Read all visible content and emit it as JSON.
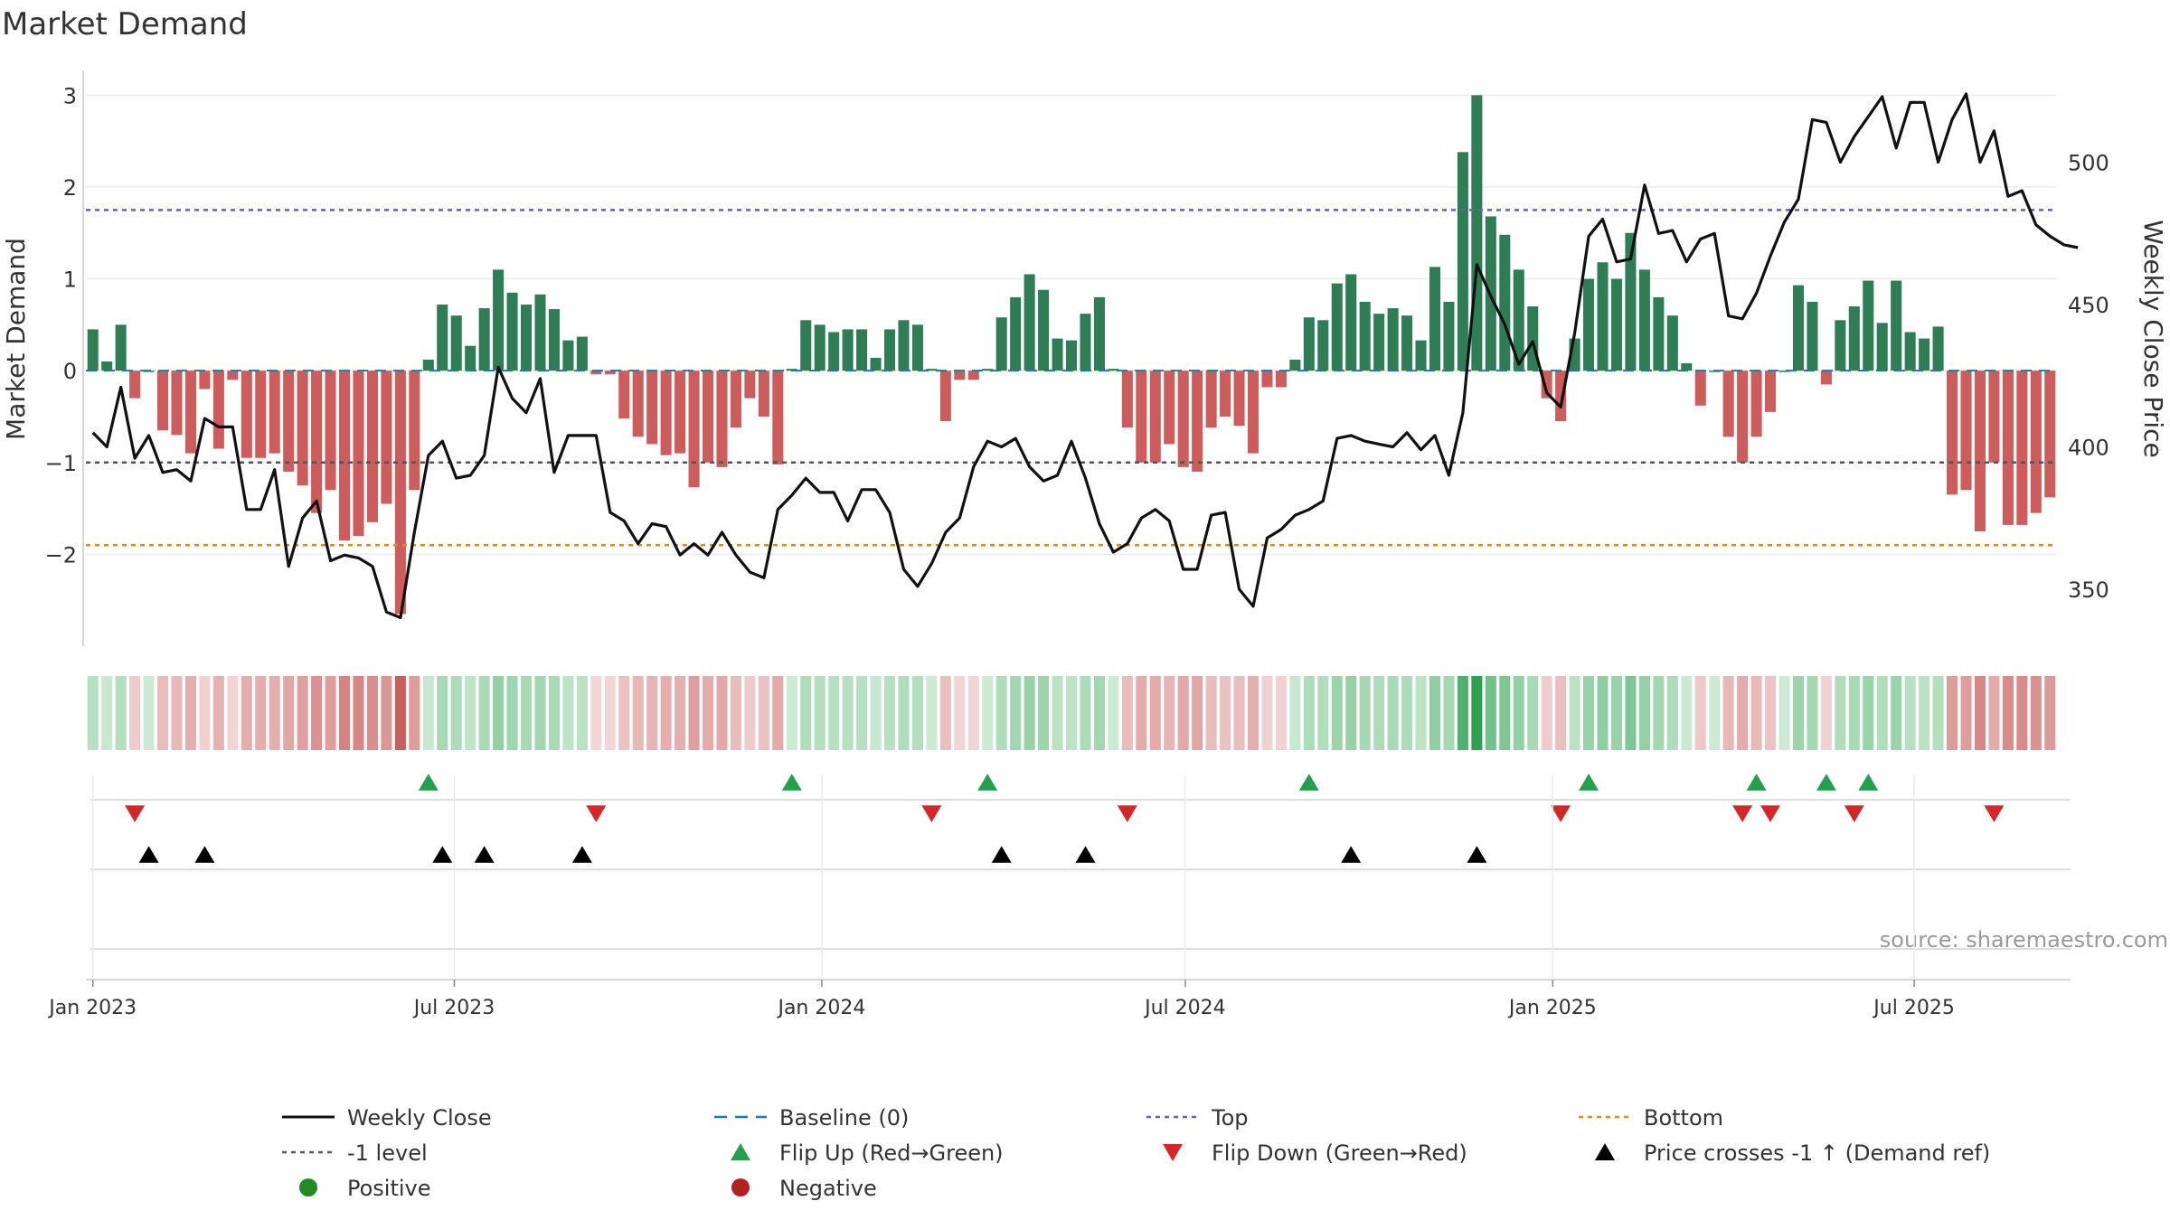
{
  "colors": {
    "green": "#2e7d55",
    "red": "#cd5c5c",
    "top": "#6a5acd",
    "bottom": "#e08a1e",
    "minus1": "#555555",
    "baseline": "#1f77b4",
    "price": "#111111",
    "flip_up": "#22a04b",
    "flip_down": "#d62728",
    "cross": "#000000",
    "pos_dot": "#228b22",
    "neg_dot": "#b22222",
    "grid": "#ececec",
    "axis": "#cccccc",
    "text": "#333333",
    "source": "#999999"
  },
  "chart_data": {
    "type": "bar+line",
    "title": "Market Demand",
    "ylabel_left": "Market Demand",
    "ylabel_right": "Weekly Close Price",
    "source": "source: sharemaestro.com",
    "date_start": "2023-01-01",
    "date_end": "2025-09-08",
    "dates_step_days": 7,
    "ylim_left": [
      -3.0,
      3.2
    ],
    "ylim_right": [
      330,
      530
    ],
    "yticks_left": [
      3,
      2,
      1,
      0,
      -1,
      -2
    ],
    "ytick_labels_left": [
      "3",
      "2",
      "1",
      "0",
      "−1",
      "−2"
    ],
    "yticks_right": [
      500,
      450,
      400,
      350
    ],
    "ytick_labels_right": [
      "500",
      "450",
      "400",
      "350"
    ],
    "xtick_dates": [
      "2023-01-01",
      "2023-07-01",
      "2024-01-01",
      "2024-07-01",
      "2025-01-01",
      "2025-07-01"
    ],
    "xtick_labels": [
      "Jan 2023",
      "Jul 2023",
      "Jan 2024",
      "Jul 2024",
      "Jan 2025",
      "Jul 2025"
    ],
    "levels": {
      "top": 1.75,
      "minus_one": -1.0,
      "bottom": -1.9,
      "baseline": 0
    },
    "demand": [
      0.45,
      0.1,
      0.5,
      -0.3,
      0.0,
      -0.65,
      -0.7,
      -0.9,
      -0.2,
      -0.85,
      -0.1,
      -0.95,
      -0.95,
      -0.9,
      -1.1,
      -1.25,
      -1.55,
      -1.3,
      -1.85,
      -1.8,
      -1.65,
      -1.45,
      -2.65,
      -1.3,
      0.12,
      0.72,
      0.6,
      0.27,
      0.68,
      1.1,
      0.85,
      0.72,
      0.83,
      0.67,
      0.33,
      0.37,
      -0.04,
      -0.04,
      -0.52,
      -0.72,
      -0.8,
      -0.92,
      -0.9,
      -1.27,
      -1.0,
      -1.05,
      -0.62,
      -0.3,
      -0.5,
      -1.02,
      0.02,
      0.55,
      0.5,
      0.42,
      0.45,
      0.45,
      0.14,
      0.45,
      0.55,
      0.5,
      0.02,
      -0.55,
      -0.1,
      -0.1,
      0.02,
      0.58,
      0.8,
      1.05,
      0.88,
      0.35,
      0.33,
      0.62,
      0.8,
      0.02,
      -0.62,
      -1.0,
      -1.0,
      -0.8,
      -1.05,
      -1.1,
      -0.62,
      -0.5,
      -0.6,
      -0.9,
      -0.18,
      -0.18,
      0.12,
      0.58,
      0.55,
      0.95,
      1.05,
      0.75,
      0.62,
      0.68,
      0.6,
      0.33,
      1.13,
      0.75,
      2.38,
      3.0,
      1.68,
      1.48,
      1.1,
      0.7,
      -0.3,
      -0.55,
      0.35,
      1.0,
      1.18,
      1.0,
      1.5,
      1.1,
      0.8,
      0.6,
      0.08,
      -0.38,
      0.0,
      -0.72,
      -1.0,
      -0.72,
      -0.45,
      0.0,
      0.93,
      0.75,
      -0.15,
      0.55,
      0.7,
      0.98,
      0.52,
      0.98,
      0.42,
      0.35,
      0.48,
      -1.35,
      -1.3,
      -1.75,
      -1.0,
      -1.68,
      -1.68,
      -1.55,
      -1.38
    ],
    "close": [
      405,
      400,
      421,
      396,
      404,
      391,
      392,
      388,
      410,
      407,
      407,
      378,
      378,
      392,
      358,
      375,
      381,
      360,
      362,
      361,
      358,
      342,
      340,
      370,
      397,
      402,
      389,
      390,
      397,
      428,
      417,
      412,
      424,
      391,
      404,
      404,
      404,
      377,
      374,
      366,
      373,
      372,
      362,
      366,
      362,
      370,
      362,
      356,
      354,
      378,
      383,
      389,
      384,
      384,
      374,
      385,
      385,
      377,
      357,
      351,
      359,
      370,
      375,
      393,
      402,
      400,
      403,
      393,
      388,
      390,
      402,
      389,
      373,
      363,
      366,
      375,
      378,
      374,
      357,
      357,
      376,
      377,
      350,
      344,
      368,
      371,
      376,
      378,
      381,
      403,
      404,
      402,
      401,
      400,
      405,
      399,
      404,
      390,
      412,
      464,
      453,
      443,
      429,
      437,
      419,
      414,
      440,
      474,
      480,
      465,
      466,
      492,
      475,
      476,
      465,
      473,
      475,
      446,
      445,
      454,
      467,
      479,
      487,
      515,
      514,
      500,
      509,
      516,
      523,
      505,
      521,
      521,
      500,
      515,
      524,
      500,
      511,
      488,
      490,
      478,
      474,
      471,
      470
    ],
    "flip_up_idx": [
      24,
      50,
      64,
      87,
      107,
      119,
      124,
      127
    ],
    "flip_down_idx": [
      3,
      36,
      60,
      74,
      105,
      118,
      120,
      126,
      136
    ],
    "cross_idx": [
      4,
      8,
      25,
      28,
      35,
      65,
      71,
      90,
      99
    ],
    "legend": [
      {
        "label": "Weekly Close",
        "kind": "line",
        "color": "price"
      },
      {
        "label": "Baseline (0)",
        "kind": "dash",
        "color": "baseline"
      },
      {
        "label": "Top",
        "kind": "dot",
        "color": "top"
      },
      {
        "label": "Bottom",
        "kind": "dot",
        "color": "bottom"
      },
      {
        "label": "-1 level",
        "kind": "dot",
        "color": "minus1"
      },
      {
        "label": "Flip Up (Red→Green)",
        "kind": "tri-up",
        "color": "flip_up"
      },
      {
        "label": "Flip Down (Green→Red)",
        "kind": "tri-down",
        "color": "flip_down"
      },
      {
        "label": "Price crosses -1 ↑ (Demand ref)",
        "kind": "tri-up",
        "color": "cross"
      },
      {
        "label": "Positive",
        "kind": "circle",
        "color": "pos_dot"
      },
      {
        "label": "Negative",
        "kind": "circle",
        "color": "neg_dot"
      }
    ]
  }
}
